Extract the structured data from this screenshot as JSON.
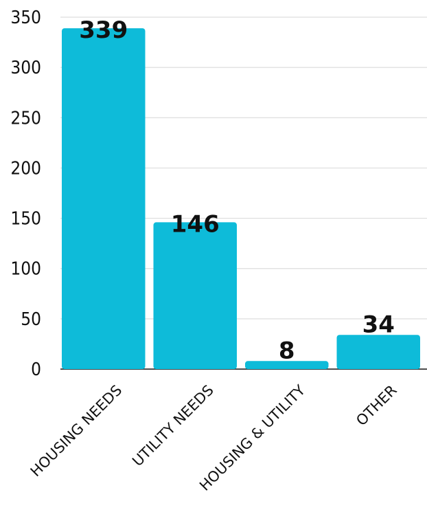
{
  "chart_data": {
    "type": "bar",
    "categories": [
      "HOUSING NEEDS",
      "UTILITY NEEDS",
      "HOUSING & UTILITY",
      "OTHER"
    ],
    "values": [
      339,
      146,
      8,
      34
    ],
    "data_labels": [
      "339",
      "146",
      "8",
      "34"
    ],
    "title": "",
    "xlabel": "",
    "ylabel": "",
    "ylim": [
      0,
      350
    ],
    "yticks": [
      0,
      50,
      100,
      150,
      200,
      250,
      300,
      350
    ],
    "ytick_labels": [
      "0",
      "50",
      "100",
      "150",
      "200",
      "250",
      "300",
      "350"
    ],
    "grid": true,
    "legend": "none",
    "colors": {
      "bar": "#0EBBD9",
      "grid": "#DDDDDD",
      "text": "#111111"
    }
  }
}
